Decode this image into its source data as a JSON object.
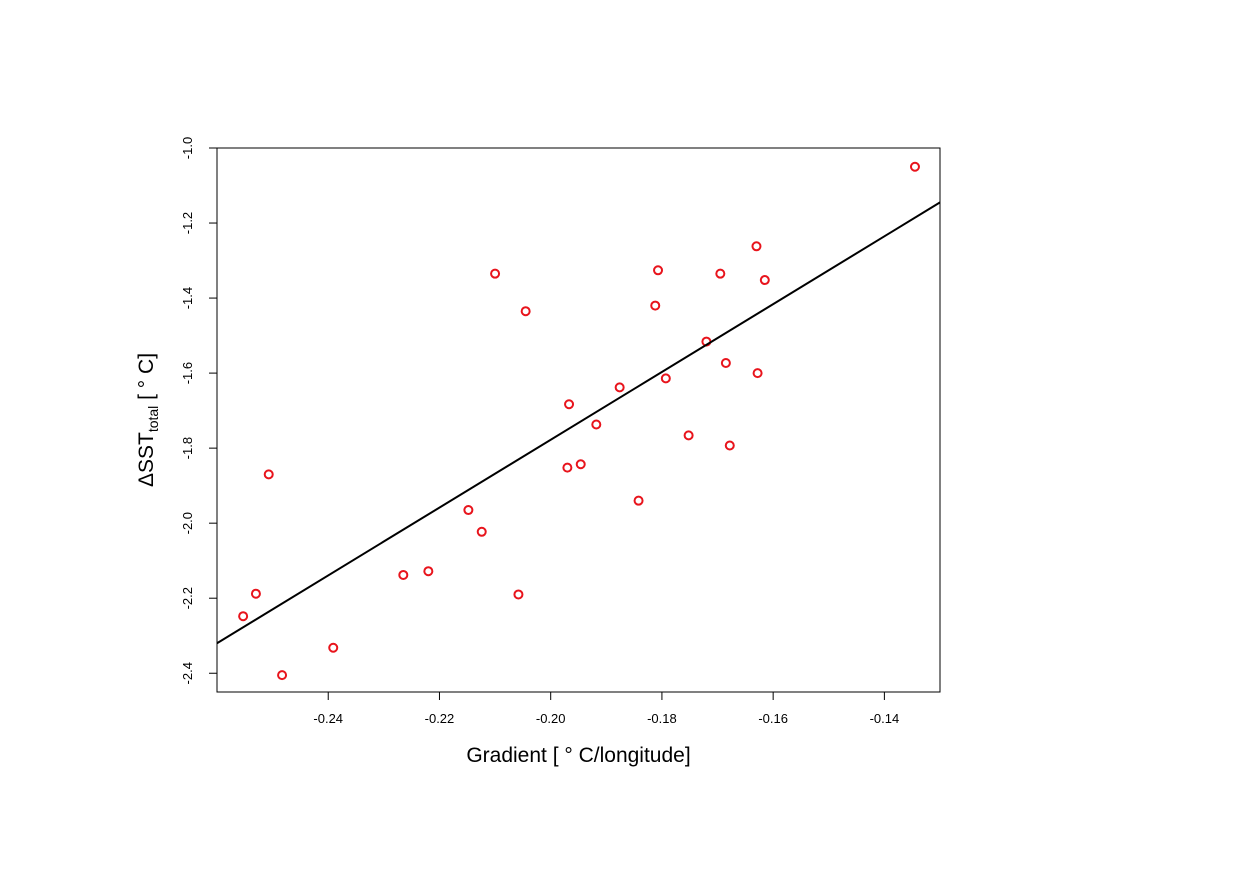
{
  "chart_data": {
    "type": "scatter",
    "xlabel": "Gradient [ ° C/longitude]",
    "ylabel": {
      "prefix": "ΔSST",
      "subscript": "total",
      "suffix": " [ ° C]"
    },
    "xlim": [
      -0.26,
      -0.13
    ],
    "ylim": [
      -2.45,
      -1.0
    ],
    "x_ticks": [
      -0.24,
      -0.22,
      -0.2,
      -0.18,
      -0.16,
      -0.14
    ],
    "x_tick_labels": [
      "-0.24",
      "-0.22",
      "-0.20",
      "-0.18",
      "-0.16",
      "-0.14"
    ],
    "y_ticks": [
      -2.4,
      -2.2,
      -2.0,
      -1.8,
      -1.6,
      -1.4,
      -1.2,
      -1.0
    ],
    "y_tick_labels": [
      "-2.4",
      "-2.2",
      "-2.0",
      "-1.8",
      "-1.6",
      "-1.4",
      "-1.2",
      "-1.0"
    ],
    "point_color": "#e8141c",
    "line_color": "#000000",
    "grid": false,
    "points": [
      {
        "x": -0.1345,
        "y": -1.05
      },
      {
        "x": -0.2553,
        "y": -2.248
      },
      {
        "x": -0.253,
        "y": -2.188
      },
      {
        "x": -0.2507,
        "y": -1.87
      },
      {
        "x": -0.2483,
        "y": -2.405
      },
      {
        "x": -0.2391,
        "y": -2.332
      },
      {
        "x": -0.2265,
        "y": -2.138
      },
      {
        "x": -0.222,
        "y": -2.128
      },
      {
        "x": -0.2148,
        "y": -1.965
      },
      {
        "x": -0.2124,
        "y": -2.023
      },
      {
        "x": -0.21,
        "y": -1.335
      },
      {
        "x": -0.2058,
        "y": -2.19
      },
      {
        "x": -0.2045,
        "y": -1.435
      },
      {
        "x": -0.197,
        "y": -1.852
      },
      {
        "x": -0.1967,
        "y": -1.683
      },
      {
        "x": -0.1946,
        "y": -1.843
      },
      {
        "x": -0.1918,
        "y": -1.737
      },
      {
        "x": -0.1876,
        "y": -1.638
      },
      {
        "x": -0.1842,
        "y": -1.94
      },
      {
        "x": -0.1812,
        "y": -1.42
      },
      {
        "x": -0.1807,
        "y": -1.326
      },
      {
        "x": -0.1793,
        "y": -1.614
      },
      {
        "x": -0.1752,
        "y": -1.766
      },
      {
        "x": -0.172,
        "y": -1.516
      },
      {
        "x": -0.1695,
        "y": -1.335
      },
      {
        "x": -0.1685,
        "y": -1.573
      },
      {
        "x": -0.1678,
        "y": -1.793
      },
      {
        "x": -0.163,
        "y": -1.262
      },
      {
        "x": -0.1628,
        "y": -1.6
      },
      {
        "x": -0.1615,
        "y": -1.352
      }
    ],
    "regression_line": {
      "x": [
        -0.26,
        -0.13
      ],
      "y": [
        -2.32,
        -1.145
      ]
    }
  }
}
